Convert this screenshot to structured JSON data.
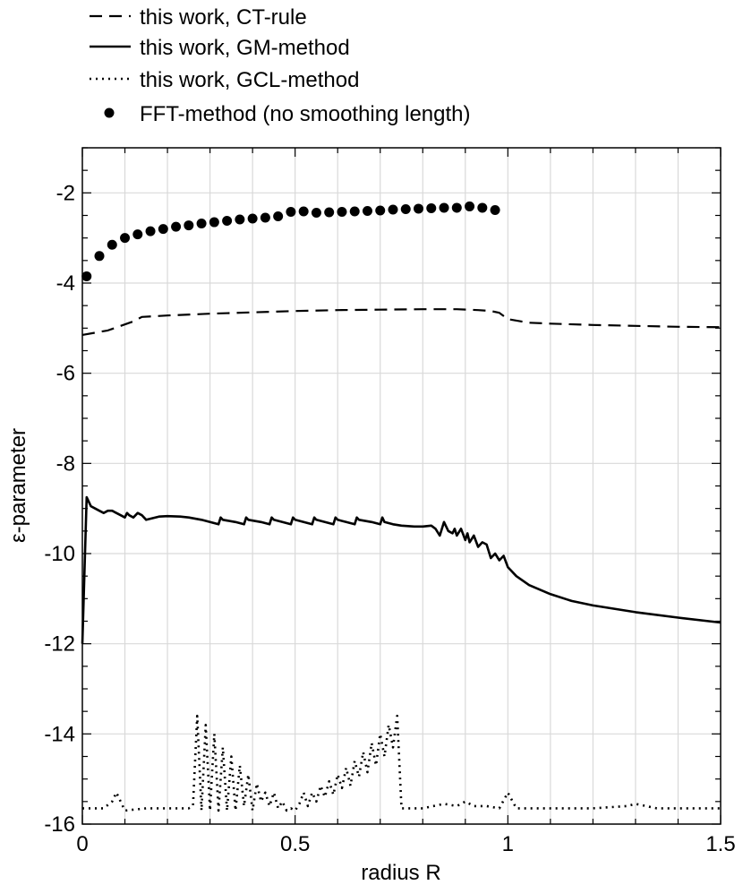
{
  "chart_data": {
    "type": "line",
    "title": "",
    "xlabel": "radius R",
    "ylabel": "ε-parameter",
    "xlim": [
      0,
      1.5
    ],
    "ylim": [
      -16,
      -1
    ],
    "grid": true,
    "legend_position": "top-left, above plot",
    "x_ticks": [
      0,
      0.5,
      1,
      1.5
    ],
    "x_tick_labels": [
      "0",
      "0.5",
      "1",
      "1.5"
    ],
    "y_ticks": [
      -16,
      -14,
      -12,
      -10,
      -8,
      -6,
      -4,
      -2
    ],
    "y_tick_labels": [
      "-16",
      "-14",
      "-12",
      "-10",
      "-8",
      "-6",
      "-4",
      "-2"
    ],
    "x_minor_step": 0.1,
    "y_minor_step": 0.5,
    "series": [
      {
        "name": "this work, CT-rule",
        "style": "dashed",
        "x": [
          0,
          0.03,
          0.06,
          0.09,
          0.12,
          0.14,
          0.2,
          0.3,
          0.4,
          0.5,
          0.6,
          0.7,
          0.8,
          0.88,
          0.93,
          0.96,
          0.98,
          1.0,
          1.05,
          1.1,
          1.2,
          1.3,
          1.4,
          1.5
        ],
        "y": [
          -5.15,
          -5.1,
          -5.05,
          -4.95,
          -4.85,
          -4.75,
          -4.72,
          -4.68,
          -4.65,
          -4.62,
          -4.6,
          -4.59,
          -4.58,
          -4.58,
          -4.6,
          -4.62,
          -4.66,
          -4.8,
          -4.88,
          -4.9,
          -4.93,
          -4.95,
          -4.97,
          -4.98
        ]
      },
      {
        "name": "this work, GM-method",
        "style": "solid",
        "x": [
          0,
          0.01,
          0.02,
          0.03,
          0.04,
          0.05,
          0.06,
          0.07,
          0.08,
          0.09,
          0.1,
          0.105,
          0.11,
          0.12,
          0.13,
          0.14,
          0.15,
          0.18,
          0.2,
          0.23,
          0.25,
          0.28,
          0.3,
          0.32,
          0.325,
          0.33,
          0.36,
          0.38,
          0.385,
          0.39,
          0.42,
          0.44,
          0.445,
          0.45,
          0.47,
          0.49,
          0.495,
          0.5,
          0.52,
          0.54,
          0.545,
          0.55,
          0.57,
          0.59,
          0.595,
          0.6,
          0.62,
          0.64,
          0.645,
          0.65,
          0.68,
          0.7,
          0.705,
          0.71,
          0.73,
          0.75,
          0.78,
          0.8,
          0.82,
          0.83,
          0.84,
          0.85,
          0.86,
          0.87,
          0.875,
          0.88,
          0.89,
          0.9,
          0.905,
          0.91,
          0.92,
          0.93,
          0.94,
          0.95,
          0.96,
          0.97,
          0.98,
          0.99,
          1.0,
          1.02,
          1.05,
          1.1,
          1.15,
          1.2,
          1.3,
          1.4,
          1.5
        ],
        "y": [
          -12.0,
          -8.75,
          -8.95,
          -9.0,
          -9.05,
          -9.1,
          -9.05,
          -9.05,
          -9.1,
          -9.15,
          -9.2,
          -9.1,
          -9.15,
          -9.2,
          -9.1,
          -9.15,
          -9.25,
          -9.18,
          -9.17,
          -9.18,
          -9.2,
          -9.25,
          -9.3,
          -9.35,
          -9.2,
          -9.25,
          -9.3,
          -9.35,
          -9.2,
          -9.25,
          -9.3,
          -9.35,
          -9.2,
          -9.25,
          -9.3,
          -9.35,
          -9.2,
          -9.25,
          -9.3,
          -9.35,
          -9.2,
          -9.25,
          -9.3,
          -9.35,
          -9.2,
          -9.25,
          -9.3,
          -9.35,
          -9.2,
          -9.25,
          -9.3,
          -9.35,
          -9.2,
          -9.3,
          -9.35,
          -9.38,
          -9.4,
          -9.4,
          -9.38,
          -9.45,
          -9.6,
          -9.3,
          -9.5,
          -9.55,
          -9.45,
          -9.6,
          -9.45,
          -9.7,
          -9.55,
          -9.75,
          -9.6,
          -9.85,
          -9.75,
          -9.8,
          -10.1,
          -10.0,
          -10.15,
          -10.05,
          -10.3,
          -10.5,
          -10.7,
          -10.9,
          -11.05,
          -11.15,
          -11.3,
          -11.42,
          -11.53
        ]
      },
      {
        "name": "this work, GCL-method",
        "style": "dotted",
        "x": [
          0,
          0.05,
          0.07,
          0.08,
          0.1,
          0.15,
          0.2,
          0.25,
          0.26,
          0.27,
          0.28,
          0.29,
          0.3,
          0.31,
          0.32,
          0.33,
          0.34,
          0.35,
          0.36,
          0.37,
          0.38,
          0.39,
          0.4,
          0.41,
          0.42,
          0.43,
          0.44,
          0.45,
          0.46,
          0.47,
          0.48,
          0.49,
          0.5,
          0.51,
          0.52,
          0.53,
          0.54,
          0.55,
          0.56,
          0.57,
          0.58,
          0.59,
          0.6,
          0.61,
          0.62,
          0.63,
          0.64,
          0.65,
          0.66,
          0.67,
          0.68,
          0.69,
          0.7,
          0.71,
          0.72,
          0.73,
          0.74,
          0.75,
          0.76,
          0.8,
          0.85,
          0.88,
          0.9,
          0.92,
          0.95,
          0.98,
          1.0,
          1.02,
          1.05,
          1.1,
          1.2,
          1.28,
          1.3,
          1.35,
          1.4,
          1.5
        ],
        "y": [
          -15.65,
          -15.65,
          -15.5,
          -15.3,
          -15.7,
          -15.65,
          -15.65,
          -15.65,
          -15.6,
          -13.6,
          -15.7,
          -13.8,
          -15.7,
          -14.0,
          -15.7,
          -14.3,
          -15.7,
          -14.5,
          -15.7,
          -14.7,
          -15.6,
          -14.9,
          -15.7,
          -15.1,
          -15.5,
          -15.3,
          -15.6,
          -15.3,
          -15.65,
          -15.5,
          -15.7,
          -15.65,
          -15.7,
          -15.55,
          -15.3,
          -15.6,
          -15.3,
          -15.5,
          -15.15,
          -15.4,
          -15.05,
          -15.35,
          -14.9,
          -15.2,
          -14.75,
          -15.15,
          -14.6,
          -14.95,
          -14.4,
          -14.85,
          -14.2,
          -14.7,
          -14.0,
          -14.5,
          -13.8,
          -14.3,
          -13.6,
          -15.65,
          -15.65,
          -15.65,
          -15.55,
          -15.6,
          -15.5,
          -15.6,
          -15.6,
          -15.65,
          -15.3,
          -15.65,
          -15.65,
          -15.65,
          -15.65,
          -15.6,
          -15.55,
          -15.65,
          -15.65,
          -15.65
        ]
      },
      {
        "name": "FFT-method (no smoothing length)",
        "style": "markers",
        "x": [
          0.01,
          0.04,
          0.07,
          0.1,
          0.13,
          0.16,
          0.19,
          0.22,
          0.25,
          0.28,
          0.31,
          0.34,
          0.37,
          0.4,
          0.43,
          0.46,
          0.49,
          0.52,
          0.55,
          0.58,
          0.61,
          0.64,
          0.67,
          0.7,
          0.73,
          0.76,
          0.79,
          0.82,
          0.85,
          0.88,
          0.91,
          0.94,
          0.97
        ],
        "y": [
          -3.85,
          -3.4,
          -3.15,
          -3.0,
          -2.92,
          -2.85,
          -2.8,
          -2.75,
          -2.72,
          -2.68,
          -2.65,
          -2.62,
          -2.59,
          -2.57,
          -2.55,
          -2.52,
          -2.42,
          -2.41,
          -2.44,
          -2.43,
          -2.42,
          -2.41,
          -2.4,
          -2.39,
          -2.37,
          -2.36,
          -2.35,
          -2.34,
          -2.33,
          -2.33,
          -2.3,
          -2.33,
          -2.38
        ]
      }
    ]
  },
  "legend": {
    "items": [
      {
        "label": "this work, CT-rule",
        "style": "dashed"
      },
      {
        "label": "this work, GM-method",
        "style": "solid"
      },
      {
        "label": "this work, GCL-method",
        "style": "dotted"
      },
      {
        "label": "FFT-method (no smoothing length)",
        "style": "markers"
      }
    ]
  }
}
